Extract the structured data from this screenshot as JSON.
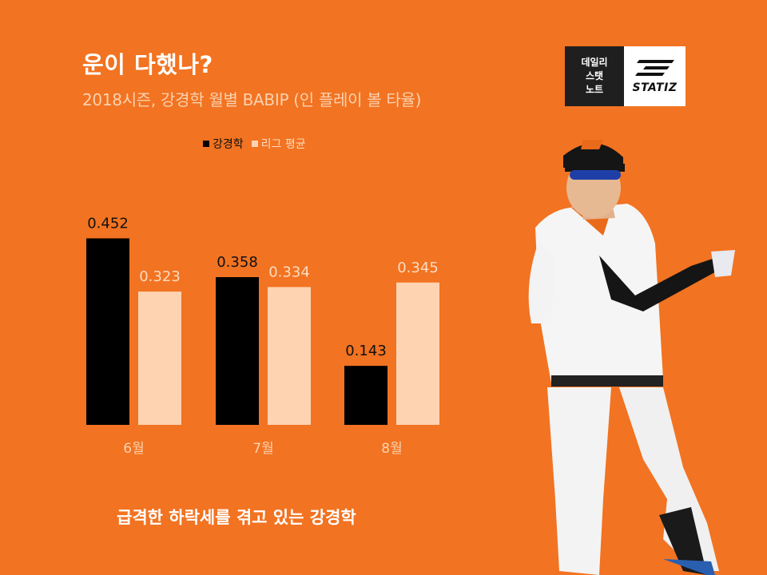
{
  "title": "운이 다했나?",
  "subtitle": "2018시즌, 강경학 월별 BABIP (인 플레이 볼 타율)",
  "legend": {
    "player": "강경학",
    "league": "리그 평균"
  },
  "footer": "급격한 하락세를 겪고 있는 강경학",
  "logo": {
    "line1": "데일리",
    "line2": "스탯",
    "line3": "노트",
    "brand": "STATIZ"
  },
  "colors": {
    "background": "#F27321",
    "player": "#000000",
    "league": "#FDD3B2"
  },
  "chart_data": {
    "type": "bar",
    "title": "운이 다했나?",
    "subtitle": "2018시즌, 강경학 월별 BABIP (인 플레이 볼 타율)",
    "categories": [
      "6월",
      "7월",
      "8월"
    ],
    "series": [
      {
        "name": "강경학",
        "values": [
          0.452,
          0.358,
          0.143
        ],
        "labels": [
          "0.452",
          "0.358",
          "0.143"
        ]
      },
      {
        "name": "리그 평균",
        "values": [
          0.323,
          0.334,
          0.345
        ],
        "labels": [
          "0.323",
          "0.334",
          "0.345"
        ]
      }
    ],
    "ylim": [
      0,
      0.6
    ],
    "grid": false,
    "legend": "top-left"
  }
}
